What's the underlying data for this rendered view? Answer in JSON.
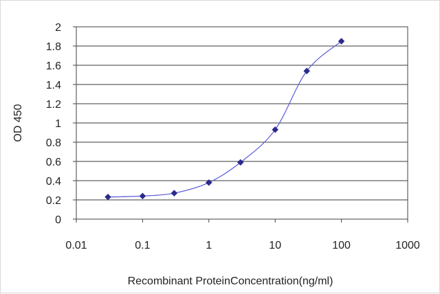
{
  "chart_data": {
    "type": "line",
    "title": "",
    "xlabel": "Recombinant ProteinConcentration(ng/ml)",
    "ylabel": "OD 450",
    "x_scale": "log",
    "xlim": [
      0.01,
      1000
    ],
    "ylim": [
      0,
      2
    ],
    "x_ticks": [
      "0.01",
      "0.1",
      "1",
      "10",
      "100",
      "1000"
    ],
    "y_ticks": [
      "0",
      "0.2",
      "0.4",
      "0.6",
      "0.8",
      "1",
      "1.2",
      "1.4",
      "1.6",
      "1.8",
      "2"
    ],
    "grid": "horizontal",
    "legend": "none",
    "series": [
      {
        "x": [
          0.03,
          0.1,
          0.3,
          1,
          3,
          10,
          30,
          100
        ],
        "y": [
          0.23,
          0.24,
          0.27,
          0.38,
          0.59,
          0.93,
          1.54,
          1.85
        ],
        "color": "#2a2a8c"
      }
    ]
  }
}
